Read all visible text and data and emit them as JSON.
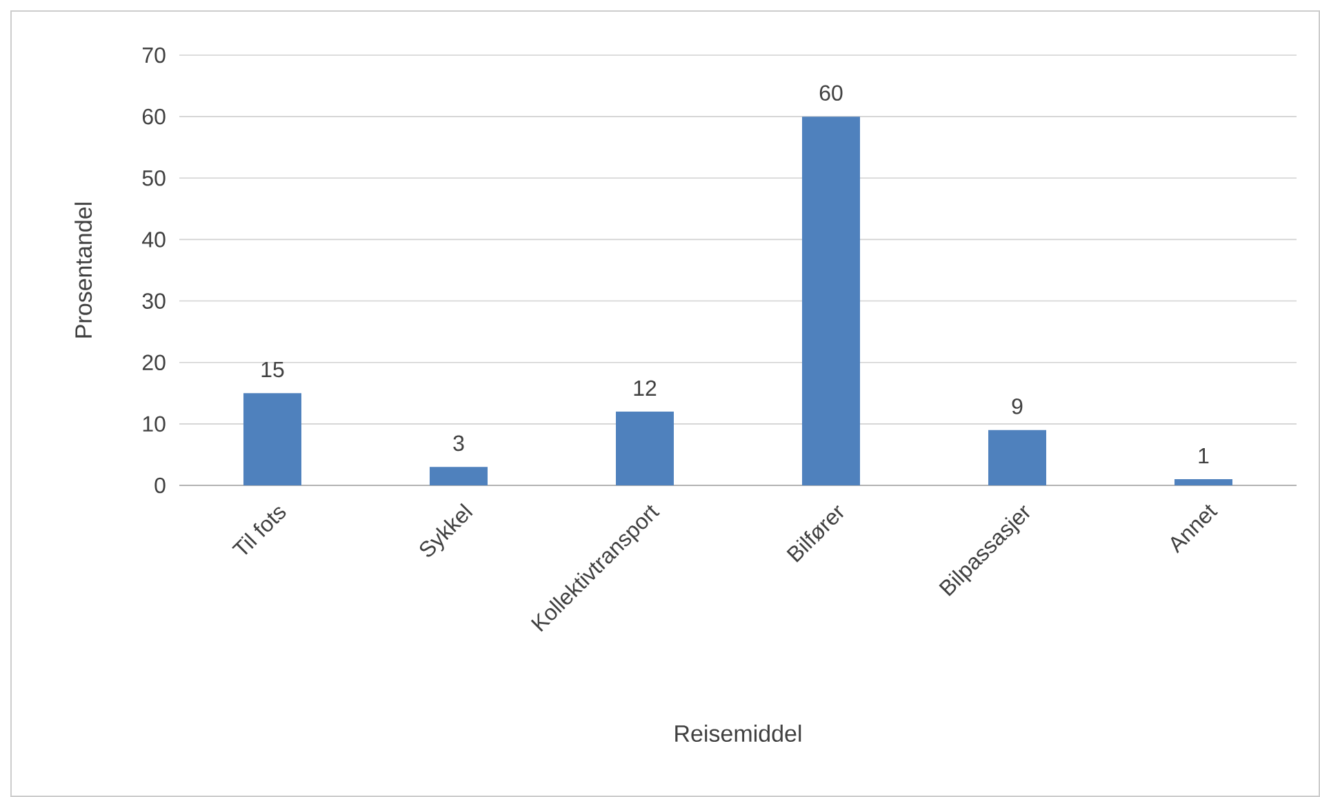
{
  "chart_data": {
    "type": "bar",
    "xlabel": "Reisemiddel",
    "ylabel": "Prosentandel",
    "categories": [
      "Til fots",
      "Sykkel",
      "Kollektivtransport",
      "Bilfører",
      "Bilpassasjer",
      "Annet"
    ],
    "values": [
      15,
      3,
      12,
      60,
      9,
      1
    ],
    "color": "#4f81bd",
    "ylim": [
      0,
      70
    ],
    "yticks": [
      0,
      10,
      20,
      30,
      40,
      50,
      60,
      70
    ],
    "grid": "y",
    "data_labels": true
  }
}
